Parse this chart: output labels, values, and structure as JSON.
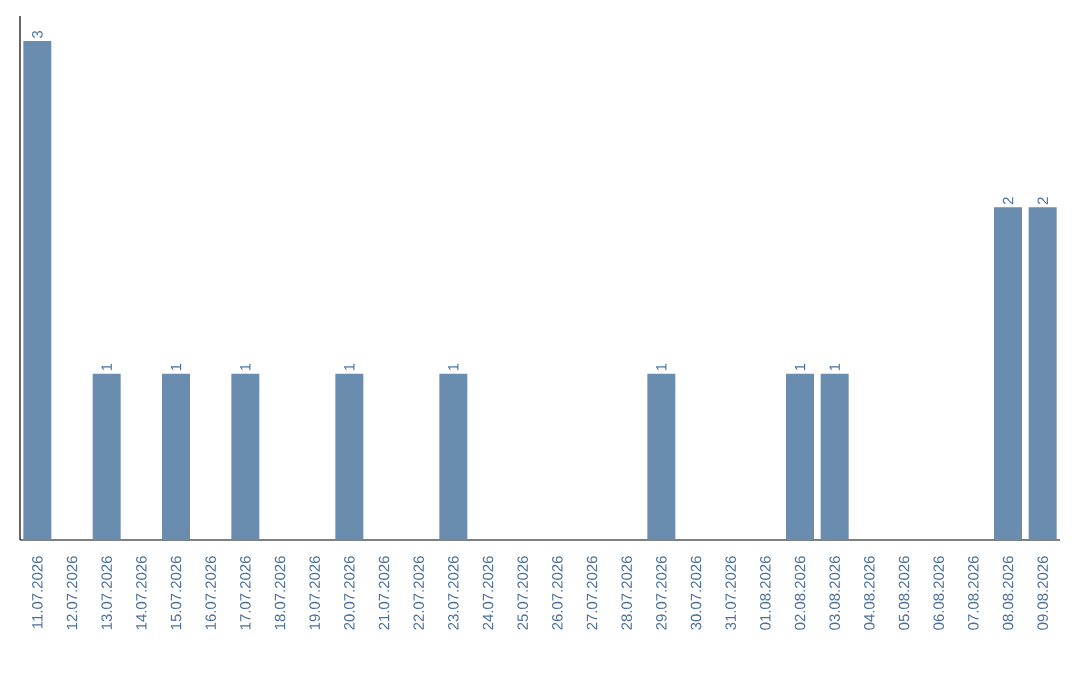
{
  "chart_data": {
    "type": "bar",
    "categories": [
      "11.07.2026",
      "12.07.2026",
      "13.07.2026",
      "14.07.2026",
      "15.07.2026",
      "16.07.2026",
      "17.07.2026",
      "18.07.2026",
      "19.07.2026",
      "20.07.2026",
      "21.07.2026",
      "22.07.2026",
      "23.07.2026",
      "24.07.2026",
      "25.07.2026",
      "26.07.2026",
      "27.07.2026",
      "28.07.2026",
      "29.07.2026",
      "30.07.2026",
      "31.07.2026",
      "01.08.2026",
      "02.08.2026",
      "03.08.2026",
      "04.08.2026",
      "05.08.2026",
      "06.08.2026",
      "07.08.2026",
      "08.08.2026",
      "09.08.2026"
    ],
    "values": [
      3,
      0,
      1,
      0,
      1,
      0,
      1,
      0,
      0,
      1,
      0,
      0,
      1,
      0,
      0,
      0,
      0,
      0,
      1,
      0,
      0,
      0,
      1,
      1,
      0,
      0,
      0,
      0,
      2,
      2
    ],
    "value_labels": [
      "3",
      null,
      "1",
      null,
      "1",
      null,
      "1",
      null,
      null,
      "1",
      null,
      null,
      "1",
      null,
      null,
      null,
      null,
      null,
      "1",
      null,
      null,
      null,
      "1",
      "1",
      null,
      null,
      null,
      null,
      "2",
      "2"
    ],
    "color": "#6a8caf",
    "ylim": [
      0,
      3.15
    ],
    "tick_labels": "x"
  }
}
